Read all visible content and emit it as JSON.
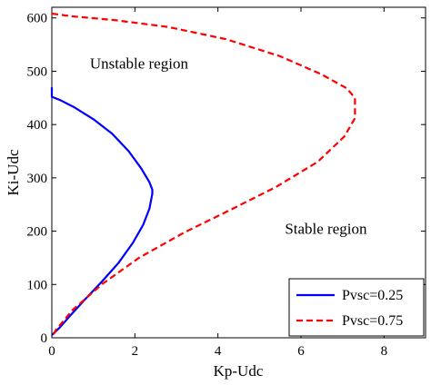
{
  "chart_data": {
    "type": "line",
    "xlabel": "Kp-Udc",
    "ylabel": "Ki-Udc",
    "xlim": [
      0,
      9
    ],
    "ylim": [
      0,
      620
    ],
    "xticks": [
      "0",
      "2",
      "4",
      "6",
      "8"
    ],
    "yticks": [
      "0",
      "100",
      "200",
      "300",
      "400",
      "500",
      "600"
    ],
    "grid": false,
    "legend_position": "bottom-right",
    "annotations": [
      {
        "text": "Unstable region",
        "x": 2.1,
        "y": 505
      },
      {
        "text": "Stable region",
        "x": 6.6,
        "y": 195
      }
    ],
    "series": [
      {
        "name": "Pvsc=0.25",
        "color": "#0000ff",
        "dash": "solid",
        "x": [
          0,
          0,
          0.2,
          0.55,
          1.0,
          1.45,
          1.85,
          2.15,
          2.35,
          2.42,
          2.42,
          2.35,
          2.2,
          1.95,
          1.6,
          1.2,
          0.8,
          0.45,
          0.2,
          0
        ],
        "y": [
          470,
          452,
          446,
          432,
          410,
          383,
          350,
          318,
          292,
          278,
          270,
          242,
          212,
          178,
          140,
          105,
          72,
          42,
          20,
          5
        ]
      },
      {
        "name": "Pvsc=0.75",
        "color": "#ff0000",
        "dash": "dashed",
        "x": [
          0,
          0.5,
          1.5,
          2.8,
          4.2,
          5.5,
          6.5,
          7.1,
          7.3,
          7.3,
          7.05,
          6.4,
          5.4,
          4.3,
          3.2,
          2.1,
          1.2,
          0.5,
          0.1,
          0
        ],
        "y": [
          608,
          603,
          596,
          583,
          560,
          528,
          494,
          468,
          450,
          412,
          378,
          330,
          283,
          240,
          198,
          150,
          100,
          52,
          15,
          0
        ]
      }
    ]
  }
}
